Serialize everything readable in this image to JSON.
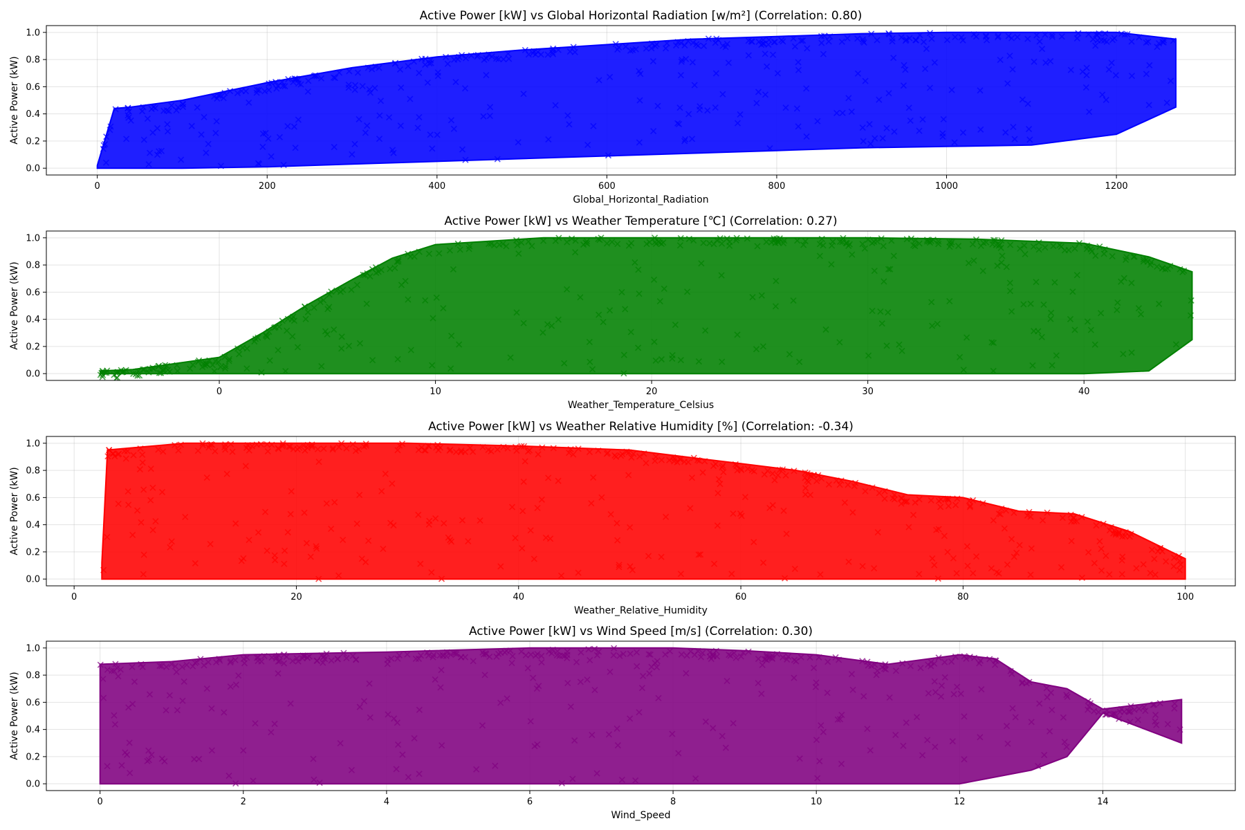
{
  "chart_data": [
    {
      "type": "scatter",
      "title": "Active Power [kW] vs Global Horizontal Radiation [w/m²] (Correlation: 0.80)",
      "xlabel": "Global_Horizontal_Radiation",
      "ylabel": "Active Power (kW)",
      "xlim": [
        -60,
        1340
      ],
      "ylim": [
        -0.05,
        1.05
      ],
      "xticks": [
        0,
        200,
        400,
        600,
        800,
        1000,
        1200
      ],
      "xtick_labels": [
        "0",
        "200",
        "400",
        "600",
        "800",
        "1000",
        "1200"
      ],
      "yticks": [
        0.0,
        0.2,
        0.4,
        0.6,
        0.8,
        1.0
      ],
      "ytick_labels": [
        "0.0",
        "0.2",
        "0.4",
        "0.6",
        "0.8",
        "1.0"
      ],
      "color": "#0000ff",
      "marker": "x",
      "grid": true,
      "series": [
        {
          "x": [
            0,
            20,
            40,
            100,
            200,
            300,
            400,
            500,
            600,
            700,
            800,
            900,
            1000,
            1100,
            1200,
            1270
          ],
          "y_min": [
            0.0,
            0.0,
            0.0,
            0.0,
            0.01,
            0.03,
            0.05,
            0.07,
            0.09,
            0.11,
            0.13,
            0.15,
            0.16,
            0.17,
            0.25,
            0.45
          ],
          "y_max": [
            0.02,
            0.44,
            0.45,
            0.5,
            0.63,
            0.74,
            0.82,
            0.87,
            0.91,
            0.95,
            0.97,
            0.99,
            1.0,
            1.0,
            1.0,
            0.95
          ]
        }
      ]
    },
    {
      "type": "scatter",
      "title": "Active Power [kW] vs Weather Temperature [℃] (Correlation: 0.27)",
      "xlabel": "Weather_Temperature_Celsius",
      "ylabel": "Active Power (kW)",
      "xlim": [
        -8,
        47
      ],
      "ylim": [
        -0.05,
        1.05
      ],
      "xticks": [
        0,
        10,
        20,
        30,
        40
      ],
      "xtick_labels": [
        "0",
        "10",
        "20",
        "30",
        "40"
      ],
      "yticks": [
        0.0,
        0.2,
        0.4,
        0.6,
        0.8,
        1.0
      ],
      "ytick_labels": [
        "0.0",
        "0.2",
        "0.4",
        "0.6",
        "0.8",
        "1.0"
      ],
      "color": "#008000",
      "marker": "x",
      "grid": true,
      "series": [
        {
          "x": [
            -5.5,
            -4,
            0,
            2,
            4,
            6,
            8,
            10,
            15,
            20,
            25,
            30,
            35,
            40,
            43,
            45
          ],
          "y_min": [
            0.0,
            0.0,
            0.0,
            0.0,
            0.0,
            0.0,
            0.0,
            0.0,
            0.0,
            0.0,
            0.0,
            0.0,
            0.0,
            0.0,
            0.02,
            0.25
          ],
          "y_max": [
            0.02,
            0.03,
            0.12,
            0.3,
            0.5,
            0.68,
            0.85,
            0.95,
            1.0,
            1.0,
            1.0,
            1.0,
            0.99,
            0.96,
            0.86,
            0.75
          ]
        }
      ]
    },
    {
      "type": "scatter",
      "title": "Active Power [kW] vs Weather Relative Humidity [%] (Correlation: -0.34)",
      "xlabel": "Weather_Relative_Humidity",
      "ylabel": "Active Power (kW)",
      "xlim": [
        -2.5,
        104.5
      ],
      "ylim": [
        -0.05,
        1.05
      ],
      "xticks": [
        0,
        20,
        40,
        60,
        80,
        100
      ],
      "xtick_labels": [
        "0",
        "20",
        "40",
        "60",
        "80",
        "100"
      ],
      "yticks": [
        0.0,
        0.2,
        0.4,
        0.6,
        0.8,
        1.0
      ],
      "ytick_labels": [
        "0.0",
        "0.2",
        "0.4",
        "0.6",
        "0.8",
        "1.0"
      ],
      "color": "#ff0000",
      "marker": "x",
      "grid": true,
      "series": [
        {
          "x": [
            2.5,
            3,
            10,
            20,
            30,
            40,
            50,
            55,
            60,
            65,
            70,
            75,
            80,
            85,
            90,
            95,
            100
          ],
          "y_min": [
            0.0,
            0.0,
            0.0,
            0.0,
            0.0,
            0.0,
            0.0,
            0.0,
            0.0,
            0.0,
            0.0,
            0.0,
            0.0,
            0.0,
            0.0,
            0.0,
            0.0
          ],
          "y_max": [
            0.12,
            0.95,
            1.0,
            1.0,
            1.0,
            0.98,
            0.95,
            0.9,
            0.85,
            0.8,
            0.72,
            0.62,
            0.6,
            0.5,
            0.48,
            0.35,
            0.15
          ]
        }
      ]
    },
    {
      "type": "scatter",
      "title": "Active Power [kW] vs Wind Speed [m/s] (Correlation: 0.30)",
      "xlabel": "Wind_Speed",
      "ylabel": "Active Power (kW)",
      "xlim": [
        -0.75,
        15.85
      ],
      "ylim": [
        -0.05,
        1.05
      ],
      "xticks": [
        0,
        2,
        4,
        6,
        8,
        10,
        12,
        14
      ],
      "xtick_labels": [
        "0",
        "2",
        "4",
        "6",
        "8",
        "10",
        "12",
        "14"
      ],
      "yticks": [
        0.0,
        0.2,
        0.4,
        0.6,
        0.8,
        1.0
      ],
      "ytick_labels": [
        "0.0",
        "0.2",
        "0.4",
        "0.6",
        "0.8",
        "1.0"
      ],
      "color": "#800080",
      "marker": "x",
      "grid": true,
      "series": [
        {
          "x": [
            0,
            1,
            2,
            4,
            6,
            8,
            9,
            10,
            11,
            12,
            12.5,
            13,
            13.5,
            14,
            15.1
          ],
          "y_min": [
            0.0,
            0.0,
            0.0,
            0.0,
            0.0,
            0.0,
            0.0,
            0.0,
            0.0,
            0.0,
            0.05,
            0.1,
            0.2,
            0.52,
            0.3
          ],
          "y_max": [
            0.88,
            0.9,
            0.95,
            0.97,
            1.0,
            1.0,
            0.98,
            0.95,
            0.88,
            0.95,
            0.92,
            0.75,
            0.7,
            0.55,
            0.62
          ]
        }
      ]
    }
  ]
}
